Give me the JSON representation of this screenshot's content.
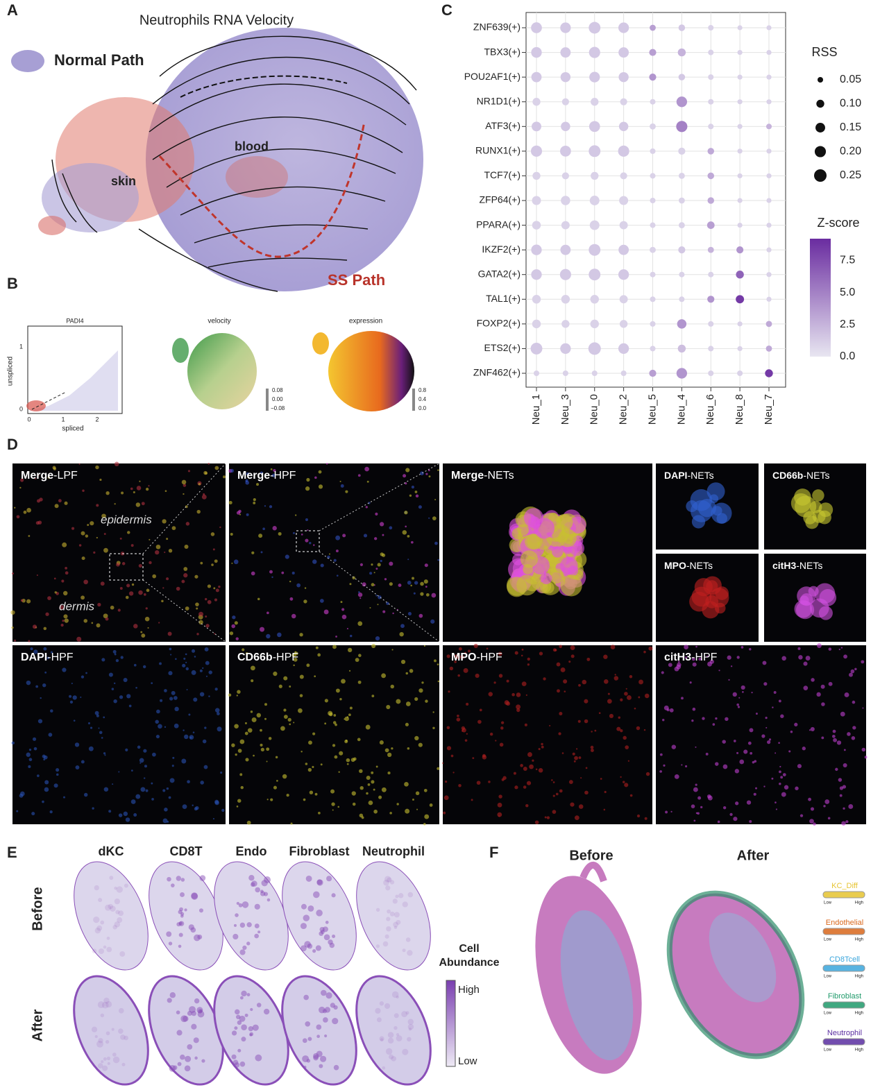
{
  "figure": {
    "panel_labels": [
      "A",
      "B",
      "C",
      "D",
      "E",
      "F"
    ]
  },
  "panel_a": {
    "title": "Neutrophils RNA Velocity",
    "normal_path": "Normal Path",
    "blood": "blood",
    "skin": "skin",
    "ss_path": "SS Path"
  },
  "panel_b": {
    "scatter": {
      "title": "PADI4",
      "ylabel": "unspliced",
      "xlabel": "spliced",
      "xticks": [
        "0",
        "1",
        "2"
      ],
      "yticks": [
        "0",
        "1"
      ]
    },
    "velocity": {
      "title": "velocity",
      "ticks": [
        "0.08",
        "0.00",
        "−0.08"
      ]
    },
    "expression": {
      "title": "expression",
      "ticks": [
        "0.8",
        "0.4",
        "0.0"
      ]
    }
  },
  "chart_data": {
    "type": "dotplot",
    "rows": [
      "ZNF639(+)",
      "TBX3(+)",
      "POU2AF1(+)",
      "NR1D1(+)",
      "ATF3(+)",
      "RUNX1(+)",
      "TCF7(+)",
      "ZFP64(+)",
      "PPARA(+)",
      "IKZF2(+)",
      "GATA2(+)",
      "TAL1(+)",
      "FOXP2(+)",
      "ETS2(+)",
      "ZNF462(+)"
    ],
    "categories": [
      "Neu_1",
      "Neu_3",
      "Neu_0",
      "Neu_2",
      "Neu_5",
      "Neu_4",
      "Neu_6",
      "Neu_8",
      "Neu_7"
    ],
    "size_values": [
      [
        0.19,
        0.18,
        0.22,
        0.18,
        0.06,
        0.07,
        0.05,
        0.04,
        0.04
      ],
      [
        0.18,
        0.17,
        0.2,
        0.17,
        0.08,
        0.1,
        0.05,
        0.04,
        0.04
      ],
      [
        0.17,
        0.16,
        0.18,
        0.16,
        0.08,
        0.07,
        0.05,
        0.04,
        0.04
      ],
      [
        0.1,
        0.08,
        0.1,
        0.08,
        0.05,
        0.18,
        0.05,
        0.04,
        0.04
      ],
      [
        0.15,
        0.14,
        0.19,
        0.14,
        0.06,
        0.2,
        0.05,
        0.04,
        0.05
      ],
      [
        0.2,
        0.19,
        0.22,
        0.2,
        0.05,
        0.08,
        0.07,
        0.04,
        0.04
      ],
      [
        0.1,
        0.08,
        0.1,
        0.08,
        0.05,
        0.06,
        0.07,
        0.04,
        0.04
      ],
      [
        0.13,
        0.14,
        0.15,
        0.13,
        0.05,
        0.06,
        0.07,
        0.04,
        0.04
      ],
      [
        0.12,
        0.11,
        0.15,
        0.11,
        0.05,
        0.06,
        0.09,
        0.04,
        0.04
      ],
      [
        0.18,
        0.17,
        0.22,
        0.17,
        0.06,
        0.08,
        0.06,
        0.08,
        0.04
      ],
      [
        0.18,
        0.2,
        0.22,
        0.18,
        0.05,
        0.05,
        0.05,
        0.1,
        0.04
      ],
      [
        0.12,
        0.12,
        0.12,
        0.11,
        0.05,
        0.05,
        0.08,
        0.11,
        0.04
      ],
      [
        0.12,
        0.1,
        0.12,
        0.1,
        0.05,
        0.14,
        0.05,
        0.04,
        0.06
      ],
      [
        0.22,
        0.18,
        0.25,
        0.18,
        0.05,
        0.1,
        0.05,
        0.04,
        0.06
      ],
      [
        0.05,
        0.05,
        0.05,
        0.05,
        0.08,
        0.18,
        0.05,
        0.05,
        0.1
      ]
    ],
    "color_values": [
      [
        1.5,
        1.5,
        1.5,
        1.5,
        3.5,
        1.5,
        1,
        1,
        1
      ],
      [
        1.5,
        1.5,
        1.5,
        1.5,
        3.5,
        2.5,
        1,
        1,
        1
      ],
      [
        1.5,
        1.5,
        1.5,
        1.5,
        4,
        1.5,
        1,
        1,
        1
      ],
      [
        1,
        1,
        1,
        1,
        1,
        4,
        1,
        1,
        1
      ],
      [
        1.5,
        1.5,
        1.5,
        1.5,
        1,
        5,
        1,
        1,
        2.5
      ],
      [
        1.5,
        1.5,
        1.5,
        1.5,
        1,
        1,
        3,
        1,
        1
      ],
      [
        1,
        1,
        1,
        1,
        1,
        1,
        3,
        1,
        1
      ],
      [
        1,
        1,
        1,
        1,
        1,
        1,
        3,
        1,
        1
      ],
      [
        1,
        1,
        1,
        1,
        1,
        1,
        3.5,
        1,
        1
      ],
      [
        1.5,
        1.5,
        1.5,
        1.5,
        1,
        1.5,
        2.5,
        4,
        1
      ],
      [
        1.5,
        1.5,
        1.5,
        1.5,
        1,
        1,
        1,
        6.5,
        1
      ],
      [
        1,
        1,
        1,
        1,
        1,
        1,
        4,
        8.5,
        1
      ],
      [
        1,
        1,
        1,
        1,
        1,
        4,
        1,
        1,
        3
      ],
      [
        1.5,
        1.5,
        1.5,
        1.5,
        1,
        2,
        1,
        1,
        3
      ],
      [
        1,
        1,
        1,
        1,
        3.5,
        4,
        1,
        1,
        8.5
      ]
    ],
    "size_legend": {
      "title": "RSS",
      "ticks": [
        0.05,
        {
          "value": 0.1,
          "label": "0.10"
        },
        0.15,
        {
          "value": 0.2,
          "label": "0.20"
        },
        0.25
      ]
    },
    "color_legend": {
      "title": "Z-score",
      "zlim": [
        0,
        9.2
      ],
      "ticks": [
        {
          "value": 0,
          "label": "0.0"
        },
        2.5,
        {
          "value": 5,
          "label": "5.0"
        },
        7.5
      ]
    },
    "colors": {
      "low": "#e8e6f1",
      "high": "#6a2ca0"
    }
  },
  "panel_d": {
    "tiles": [
      {
        "stain": "Merge",
        "view": "-LPF"
      },
      {
        "stain": "Merge",
        "view": "-HPF"
      },
      {
        "stain": "Merge",
        "view": "-NETs"
      },
      {
        "stain": "DAPI",
        "view": "-NETs"
      },
      {
        "stain": "CD66b",
        "view": "-NETs"
      },
      {
        "stain": "MPO",
        "view": "-NETs"
      },
      {
        "stain": "citH3",
        "view": "-NETs"
      },
      {
        "stain": "DAPI",
        "view": "-HPF"
      },
      {
        "stain": "CD66b",
        "view": "-HPF"
      },
      {
        "stain": "MPO",
        "view": "-HPF"
      },
      {
        "stain": "citH3",
        "view": "-HPF"
      }
    ],
    "epidermis": "epidermis",
    "dermis": "dermis"
  },
  "panel_e": {
    "columns": [
      "dKC",
      "CD8T",
      "Endo",
      "Fibroblast",
      "Neutrophil"
    ],
    "rows": [
      "Before",
      "After"
    ],
    "legend": {
      "title": [
        "Cell",
        "Abundance"
      ],
      "high": "High",
      "low": "Low"
    }
  },
  "panel_f": {
    "columns": [
      "Before",
      "After"
    ],
    "legend": [
      {
        "name": "KC_Diff",
        "color": "#e6c431",
        "low": "Low",
        "high": "High"
      },
      {
        "name": "Endothelial",
        "color": "#d9671c",
        "low": "Low",
        "high": "High"
      },
      {
        "name": "CD8Tcell",
        "color": "#3aa6dc",
        "low": "Low",
        "high": "High"
      },
      {
        "name": "Fibroblast",
        "color": "#1f9a6a",
        "low": "Low",
        "high": "High"
      },
      {
        "name": "Neutrophil",
        "color": "#5a2ea0",
        "low": "Low",
        "high": "High"
      }
    ]
  }
}
